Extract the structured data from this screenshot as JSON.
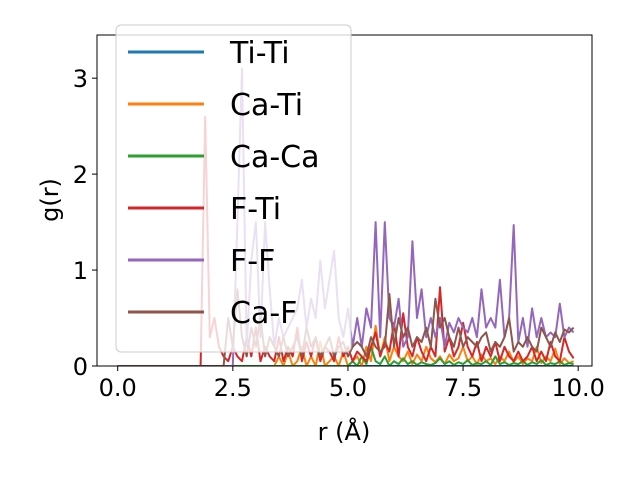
{
  "chart_data": {
    "type": "line",
    "xlabel": "r (Å)",
    "ylabel": "g(r)",
    "xlim": [
      -0.45,
      10.3
    ],
    "ylim": [
      0,
      3.45
    ],
    "xticks": [
      "0.0",
      "2.5",
      "5.0",
      "7.5",
      "10.0"
    ],
    "yticks": [
      "0",
      "1",
      "2",
      "3"
    ],
    "grid": false,
    "legend_position": "upper-left",
    "series": [
      {
        "name": "Ti-Ti",
        "color": "#1f77b4",
        "x": [
          0,
          2,
          4,
          5,
          6,
          7,
          8,
          9,
          9.9
        ],
        "y": [
          0,
          0,
          0,
          0,
          0,
          0,
          0,
          0,
          0
        ]
      },
      {
        "name": "Ca-Ti",
        "color": "#ff7f0e",
        "x": [
          0,
          3.4,
          3.5,
          3.6,
          3.7,
          3.8,
          3.9,
          4.0,
          4.1,
          4.2,
          4.3,
          4.4,
          4.5,
          4.6,
          4.7,
          4.8,
          4.9,
          5.0,
          5.1,
          5.2,
          5.3,
          5.4,
          5.5,
          5.6,
          5.7,
          5.8,
          5.9,
          6.0,
          6.1,
          6.2,
          6.3,
          6.4,
          6.5,
          6.6,
          6.7,
          6.8,
          6.9,
          7.0,
          7.1,
          7.2,
          7.3,
          7.4,
          7.5,
          7.6,
          7.7,
          7.8,
          7.9,
          8.0,
          8.1,
          8.2,
          8.3,
          8.4,
          8.5,
          8.6,
          8.7,
          8.8,
          8.9,
          9.0,
          9.1,
          9.2,
          9.3,
          9.4,
          9.5,
          9.6,
          9.7,
          9.8,
          9.9
        ],
        "y": [
          0,
          0,
          0.1,
          0,
          0.15,
          0,
          0.05,
          0.2,
          0,
          0.1,
          0,
          0.25,
          0,
          0.05,
          0.1,
          0,
          0.15,
          0,
          0.05,
          0.1,
          0,
          0.2,
          0.05,
          0.42,
          0.1,
          0.3,
          0.05,
          0.2,
          0.1,
          0.05,
          0.15,
          0.02,
          0.12,
          0.05,
          0.2,
          0.08,
          0.04,
          0.1,
          0.02,
          0.12,
          0.05,
          0.08,
          0.2,
          0.05,
          0.1,
          0.02,
          0.12,
          0.05,
          0.08,
          0.02,
          0.1,
          0.05,
          0.15,
          0.04,
          0.1,
          0.02,
          0.08,
          0.05,
          0.2,
          0.03,
          0.1,
          0.05,
          0.18,
          0.02,
          0.08,
          0.03,
          0.05
        ]
      },
      {
        "name": "Ca-Ca",
        "color": "#2ca02c",
        "x": [
          0,
          5.0,
          5.1,
          5.2,
          5.3,
          5.4,
          5.5,
          5.6,
          5.7,
          5.8,
          5.9,
          6.0,
          6.1,
          6.2,
          6.3,
          6.4,
          6.5,
          6.6,
          6.7,
          6.8,
          6.9,
          7.0,
          7.1,
          7.2,
          7.3,
          7.4,
          7.5,
          7.6,
          7.7,
          7.8,
          7.9,
          8.0,
          8.1,
          8.2,
          8.3,
          8.4,
          8.5,
          8.6,
          8.7,
          8.8,
          8.9,
          9.0,
          9.1,
          9.2,
          9.3,
          9.4,
          9.5,
          9.6,
          9.7,
          9.8,
          9.9
        ],
        "y": [
          0,
          0,
          0.05,
          0,
          0.1,
          0.02,
          0.2,
          0.05,
          0.02,
          0.1,
          0,
          0.05,
          0.02,
          0.08,
          0.02,
          0.05,
          0.01,
          0.04,
          0.02,
          0.01,
          0.03,
          0.08,
          0.02,
          0.05,
          0.01,
          0.04,
          0.02,
          0.06,
          0.01,
          0.03,
          0.02,
          0.05,
          0.01,
          0.1,
          0.02,
          0.04,
          0.01,
          0.03,
          0.02,
          0.05,
          0.01,
          0.04,
          0.02,
          0.06,
          0.01,
          0.03,
          0.02,
          0.05,
          0.01,
          0.03,
          0.02
        ]
      },
      {
        "name": "F-Ti",
        "color": "#d62728",
        "x": [
          0,
          1.8,
          1.9,
          2.0,
          2.1,
          2.2,
          2.3,
          2.4,
          2.5,
          2.6,
          2.7,
          2.8,
          2.9,
          3.0,
          3.1,
          3.2,
          3.3,
          3.4,
          3.5,
          3.6,
          3.7,
          3.8,
          3.9,
          4.0,
          4.1,
          4.2,
          4.3,
          4.4,
          4.5,
          4.6,
          4.7,
          4.8,
          4.9,
          5.0,
          5.1,
          5.2,
          5.3,
          5.4,
          5.5,
          5.6,
          5.7,
          5.8,
          5.9,
          6.0,
          6.1,
          6.2,
          6.3,
          6.4,
          6.5,
          6.6,
          6.7,
          6.8,
          6.9,
          7.0,
          7.1,
          7.2,
          7.3,
          7.4,
          7.5,
          7.6,
          7.7,
          7.8,
          7.9,
          8.0,
          8.1,
          8.2,
          8.3,
          8.4,
          8.5,
          8.6,
          8.7,
          8.8,
          8.9,
          9.0,
          9.1,
          9.2,
          9.3,
          9.4,
          9.5,
          9.6,
          9.7,
          9.8,
          9.9
        ],
        "y": [
          0,
          0,
          2.6,
          0.3,
          0.5,
          0.2,
          0.1,
          0.05,
          0.2,
          0.1,
          0.05,
          0.3,
          0.1,
          0.4,
          0.05,
          0.2,
          0.1,
          0.05,
          0.3,
          0.05,
          0.2,
          0.1,
          0.4,
          0.05,
          0.25,
          0.1,
          0.3,
          0.05,
          0.2,
          0.15,
          0.05,
          0.3,
          0.1,
          0.2,
          0.05,
          0.15,
          0.1,
          0.05,
          0.2,
          0.35,
          0.1,
          0.25,
          0.15,
          0.45,
          0.1,
          0.55,
          0.2,
          0.1,
          0.3,
          0.15,
          0.05,
          0.2,
          0.1,
          0.82,
          0.15,
          0.3,
          0.1,
          0.2,
          0.45,
          0.2,
          0.1,
          0.25,
          0.05,
          0.2,
          0.1,
          0.25,
          0.05,
          0.2,
          0.1,
          0.05,
          0.15,
          0.05,
          0.1,
          0.2,
          0.05,
          0.15,
          0.05,
          0.25,
          0.1,
          0.05,
          0.3,
          0.15,
          0.08
        ]
      },
      {
        "name": "F-F",
        "color": "#9467bd",
        "x": [
          0,
          2.5,
          2.6,
          2.7,
          2.8,
          2.9,
          3.0,
          3.1,
          3.2,
          3.3,
          3.4,
          3.5,
          3.6,
          3.7,
          3.8,
          3.9,
          4.0,
          4.1,
          4.2,
          4.3,
          4.4,
          4.5,
          4.6,
          4.7,
          4.8,
          4.9,
          5.0,
          5.1,
          5.2,
          5.3,
          5.4,
          5.5,
          5.6,
          5.7,
          5.8,
          5.9,
          6.0,
          6.1,
          6.2,
          6.3,
          6.4,
          6.5,
          6.6,
          6.7,
          6.8,
          6.9,
          7.0,
          7.1,
          7.2,
          7.3,
          7.4,
          7.5,
          7.6,
          7.7,
          7.8,
          7.9,
          8.0,
          8.1,
          8.2,
          8.3,
          8.4,
          8.5,
          8.6,
          8.7,
          8.8,
          8.9,
          9.0,
          9.1,
          9.2,
          9.3,
          9.4,
          9.5,
          9.6,
          9.7,
          9.8,
          9.9
        ],
        "y": [
          0,
          0,
          1.5,
          3.1,
          0.2,
          1.1,
          1.5,
          0.3,
          1.5,
          0.8,
          0.2,
          0.5,
          0.3,
          0.4,
          0.5,
          0.6,
          0.9,
          0.4,
          0.7,
          0.5,
          1.1,
          0.6,
          0.9,
          1.2,
          0.5,
          0.3,
          0.6,
          0.2,
          0.5,
          0.2,
          0.6,
          0.4,
          1.5,
          0.3,
          1.5,
          0.5,
          0.4,
          0.7,
          0.2,
          0.3,
          1.3,
          0.5,
          0.8,
          0.3,
          0.5,
          0.3,
          0.5,
          0.2,
          0.45,
          0.35,
          0.5,
          0.4,
          0.35,
          0.5,
          0.3,
          0.8,
          0.4,
          0.5,
          0.4,
          0.9,
          0.3,
          0.5,
          1.47,
          0.25,
          0.5,
          0.2,
          0.6,
          0.3,
          0.5,
          0.3,
          0.35,
          0.3,
          0.65,
          0.3,
          0.4,
          0.35
        ]
      },
      {
        "name": "Ca-F",
        "color": "#8c564b",
        "x": [
          0,
          2.3,
          2.4,
          2.5,
          2.6,
          2.7,
          2.8,
          2.9,
          3.0,
          3.1,
          3.2,
          3.3,
          3.4,
          3.5,
          3.6,
          3.7,
          3.8,
          3.9,
          4.0,
          4.1,
          4.2,
          4.3,
          4.4,
          4.5,
          4.6,
          4.7,
          4.8,
          4.9,
          5.0,
          5.1,
          5.2,
          5.3,
          5.4,
          5.5,
          5.6,
          5.7,
          5.8,
          5.9,
          6.0,
          6.1,
          6.2,
          6.3,
          6.4,
          6.5,
          6.6,
          6.7,
          6.8,
          6.9,
          7.0,
          7.1,
          7.2,
          7.3,
          7.4,
          7.5,
          7.6,
          7.7,
          7.8,
          7.9,
          8.0,
          8.1,
          8.2,
          8.3,
          8.4,
          8.5,
          8.6,
          8.7,
          8.8,
          8.9,
          9.0,
          9.1,
          9.2,
          9.3,
          9.4,
          9.5,
          9.6,
          9.7,
          9.8,
          9.9
        ],
        "y": [
          0,
          0,
          0.5,
          0.2,
          0.8,
          0.3,
          0.1,
          0.4,
          0.2,
          0.5,
          0.1,
          0.3,
          0.2,
          0.1,
          0.3,
          0.1,
          0.2,
          0.3,
          0.1,
          0.4,
          0.2,
          0.3,
          0.1,
          0.2,
          0.3,
          0.1,
          0.2,
          0.25,
          0.1,
          0.2,
          0.25,
          0.2,
          0.1,
          0.3,
          0.2,
          0.15,
          0.2,
          0.75,
          0.2,
          0.5,
          0.3,
          0.4,
          0.2,
          0.3,
          0.25,
          0.4,
          0.2,
          0.7,
          0.4,
          0.5,
          0.3,
          0.2,
          0.4,
          0.2,
          0.3,
          0.25,
          0.2,
          0.3,
          0.35,
          0.15,
          0.25,
          0.2,
          0.3,
          0.5,
          0.15,
          0.25,
          0.2,
          0.3,
          0.2,
          0.15,
          0.4,
          0.3,
          0.2,
          0.35,
          0.25,
          0.38,
          0.35,
          0.4
        ]
      }
    ]
  }
}
